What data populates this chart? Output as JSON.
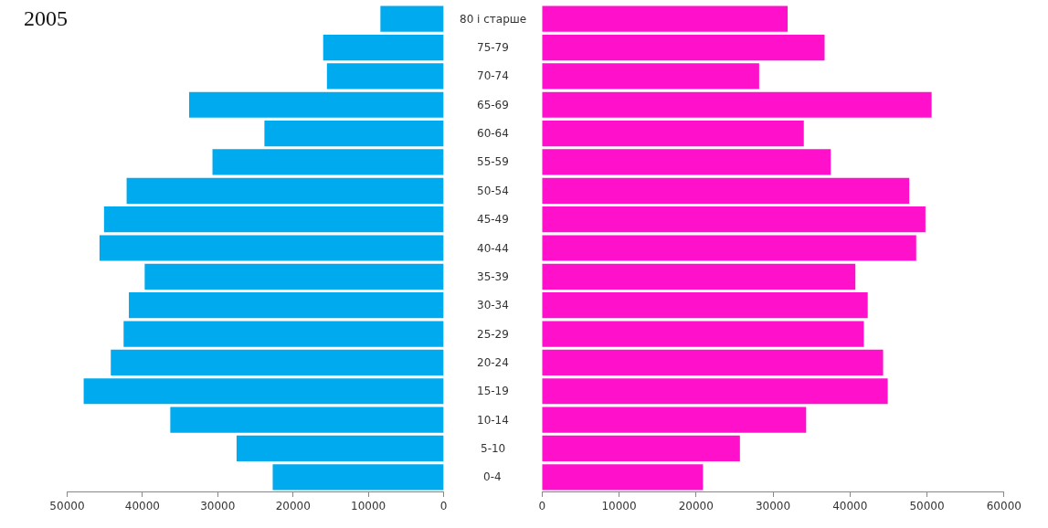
{
  "chart_data": [
    {
      "type": "bar",
      "orientation": "horizontal",
      "title": "2005",
      "categories": [
        "80 і старше",
        "75-79",
        "70-74",
        "65-69",
        "60-64",
        "55-59",
        "50-54",
        "45-49",
        "40-44",
        "35-39",
        "30-34",
        "25-29",
        "20-24",
        "15-19",
        "10-14",
        "5-10",
        "0-4"
      ],
      "series": [
        {
          "color": "#00aaee",
          "values": [
            8400,
            16000,
            15500,
            33800,
            23800,
            30700,
            42100,
            45100,
            45700,
            39700,
            41800,
            42500,
            44200,
            47800,
            36300,
            27500,
            22700
          ]
        }
      ],
      "xlim": [
        50000,
        0
      ],
      "xticks": [
        50000,
        40000,
        30000,
        20000,
        10000,
        0
      ]
    },
    {
      "type": "bar",
      "orientation": "horizontal",
      "categories": [
        "80 і старше",
        "75-79",
        "70-74",
        "65-69",
        "60-64",
        "55-59",
        "50-54",
        "45-49",
        "40-44",
        "35-39",
        "30-34",
        "25-29",
        "20-24",
        "15-19",
        "10-14",
        "5-10",
        "0-4"
      ],
      "series": [
        {
          "color": "#ff11cc",
          "values": [
            31900,
            36700,
            28200,
            50600,
            34000,
            37500,
            47700,
            49800,
            48600,
            40700,
            42300,
            41800,
            44300,
            44900,
            34300,
            25700,
            20900
          ]
        }
      ],
      "xlim": [
        0,
        60000
      ],
      "xticks": [
        0,
        10000,
        20000,
        30000,
        40000,
        50000,
        60000
      ],
      "tick_labels": "x"
    }
  ]
}
